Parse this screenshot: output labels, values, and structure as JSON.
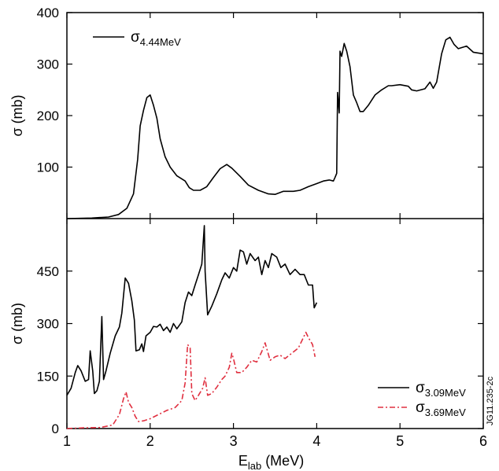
{
  "figure_id": "JG11.235-2c",
  "chart_data": {
    "type": "line",
    "xlabel": {
      "main": "E",
      "sub": "lab",
      "rest": " (MeV)"
    },
    "x_ticks": [
      "1",
      "2",
      "3",
      "4",
      "5",
      "6"
    ],
    "xlim": [
      1,
      6
    ],
    "panels": [
      {
        "name": "top",
        "ylabel": "σ (mb)",
        "ylim": [
          0,
          400
        ],
        "y_ticks": [
          100,
          200,
          300,
          400
        ],
        "legend_position": "top-left",
        "series": [
          {
            "name": "σ4.44MeV",
            "label_main": "σ",
            "label_sub": "4.44MeV",
            "color": "#000000",
            "style": "solid",
            "points": [
              [
                1.0,
                0
              ],
              [
                1.3,
                1
              ],
              [
                1.5,
                3
              ],
              [
                1.62,
                8
              ],
              [
                1.72,
                20
              ],
              [
                1.8,
                48
              ],
              [
                1.85,
                115
              ],
              [
                1.88,
                180
              ],
              [
                1.92,
                210
              ],
              [
                1.96,
                235
              ],
              [
                2.0,
                240
              ],
              [
                2.04,
                220
              ],
              [
                2.08,
                195
              ],
              [
                2.12,
                155
              ],
              [
                2.18,
                120
              ],
              [
                2.24,
                100
              ],
              [
                2.32,
                83
              ],
              [
                2.42,
                73
              ],
              [
                2.47,
                60
              ],
              [
                2.52,
                55
              ],
              [
                2.6,
                55
              ],
              [
                2.68,
                62
              ],
              [
                2.76,
                80
              ],
              [
                2.84,
                97
              ],
              [
                2.92,
                105
              ],
              [
                2.98,
                98
              ],
              [
                3.08,
                82
              ],
              [
                3.18,
                65
              ],
              [
                3.3,
                55
              ],
              [
                3.42,
                48
              ],
              [
                3.5,
                47
              ],
              [
                3.6,
                53
              ],
              [
                3.72,
                53
              ],
              [
                3.8,
                55
              ],
              [
                3.9,
                62
              ],
              [
                4.0,
                68
              ],
              [
                4.08,
                73
              ],
              [
                4.15,
                75
              ],
              [
                4.2,
                73
              ],
              [
                4.22,
                80
              ],
              [
                4.24,
                88
              ],
              [
                4.25,
                245
              ],
              [
                4.27,
                205
              ],
              [
                4.28,
                325
              ],
              [
                4.3,
                315
              ],
              [
                4.33,
                340
              ],
              [
                4.36,
                325
              ],
              [
                4.4,
                295
              ],
              [
                4.44,
                240
              ],
              [
                4.48,
                225
              ],
              [
                4.52,
                208
              ],
              [
                4.56,
                208
              ],
              [
                4.62,
                220
              ],
              [
                4.7,
                240
              ],
              [
                4.78,
                250
              ],
              [
                4.86,
                258
              ],
              [
                4.9,
                258
              ],
              [
                5.0,
                260
              ],
              [
                5.1,
                257
              ],
              [
                5.14,
                250
              ],
              [
                5.2,
                248
              ],
              [
                5.3,
                252
              ],
              [
                5.36,
                265
              ],
              [
                5.4,
                253
              ],
              [
                5.44,
                265
              ],
              [
                5.5,
                320
              ],
              [
                5.55,
                347
              ],
              [
                5.6,
                352
              ],
              [
                5.65,
                338
              ],
              [
                5.7,
                330
              ],
              [
                5.8,
                335
              ],
              [
                5.88,
                323
              ],
              [
                6.0,
                320
              ]
            ]
          }
        ]
      },
      {
        "name": "bottom",
        "ylabel": "σ (mb)",
        "ylim": [
          0,
          600
        ],
        "y_ticks": [
          0,
          150,
          300,
          450
        ],
        "legend_position": "bottom-right",
        "series": [
          {
            "name": "σ3.09MeV",
            "label_main": "σ",
            "label_sub": "3.09MeV",
            "color": "#000000",
            "style": "solid",
            "points": [
              [
                1.0,
                95
              ],
              [
                1.05,
                115
              ],
              [
                1.1,
                160
              ],
              [
                1.13,
                180
              ],
              [
                1.17,
                165
              ],
              [
                1.22,
                135
              ],
              [
                1.26,
                140
              ],
              [
                1.28,
                222
              ],
              [
                1.31,
                165
              ],
              [
                1.33,
                100
              ],
              [
                1.36,
                108
              ],
              [
                1.39,
                135
              ],
              [
                1.42,
                320
              ],
              [
                1.44,
                140
              ],
              [
                1.47,
                165
              ],
              [
                1.52,
                215
              ],
              [
                1.58,
                265
              ],
              [
                1.63,
                290
              ],
              [
                1.66,
                330
              ],
              [
                1.7,
                430
              ],
              [
                1.74,
                415
              ],
              [
                1.78,
                365
              ],
              [
                1.81,
                310
              ],
              [
                1.83,
                222
              ],
              [
                1.87,
                225
              ],
              [
                1.9,
                242
              ],
              [
                1.92,
                220
              ],
              [
                1.95,
                265
              ],
              [
                2.0,
                275
              ],
              [
                2.04,
                292
              ],
              [
                2.08,
                290
              ],
              [
                2.12,
                298
              ],
              [
                2.16,
                280
              ],
              [
                2.2,
                290
              ],
              [
                2.24,
                275
              ],
              [
                2.28,
                300
              ],
              [
                2.32,
                285
              ],
              [
                2.38,
                305
              ],
              [
                2.42,
                360
              ],
              [
                2.46,
                390
              ],
              [
                2.5,
                380
              ],
              [
                2.54,
                410
              ],
              [
                2.58,
                440
              ],
              [
                2.62,
                470
              ],
              [
                2.65,
                580
              ],
              [
                2.66,
                450
              ],
              [
                2.69,
                325
              ],
              [
                2.74,
                350
              ],
              [
                2.8,
                385
              ],
              [
                2.86,
                425
              ],
              [
                2.9,
                445
              ],
              [
                2.95,
                430
              ],
              [
                3.0,
                460
              ],
              [
                3.04,
                450
              ],
              [
                3.08,
                510
              ],
              [
                3.12,
                505
              ],
              [
                3.16,
                470
              ],
              [
                3.2,
                500
              ],
              [
                3.26,
                480
              ],
              [
                3.3,
                490
              ],
              [
                3.34,
                440
              ],
              [
                3.38,
                480
              ],
              [
                3.42,
                460
              ],
              [
                3.46,
                500
              ],
              [
                3.52,
                490
              ],
              [
                3.57,
                460
              ],
              [
                3.62,
                470
              ],
              [
                3.68,
                440
              ],
              [
                3.74,
                455
              ],
              [
                3.8,
                440
              ],
              [
                3.85,
                440
              ],
              [
                3.9,
                410
              ],
              [
                3.95,
                410
              ],
              [
                3.97,
                345
              ],
              [
                4.0,
                360
              ]
            ]
          },
          {
            "name": "σ3.69MeV",
            "label_main": "σ",
            "label_sub": "3.69MeV",
            "color": "#e03040",
            "style": "dashdot",
            "points": [
              [
                1.0,
                0
              ],
              [
                1.2,
                2
              ],
              [
                1.4,
                3
              ],
              [
                1.55,
                10
              ],
              [
                1.63,
                40
              ],
              [
                1.68,
                85
              ],
              [
                1.71,
                105
              ],
              [
                1.74,
                75
              ],
              [
                1.78,
                60
              ],
              [
                1.82,
                35
              ],
              [
                1.86,
                20
              ],
              [
                1.92,
                22
              ],
              [
                2.0,
                28
              ],
              [
                2.1,
                40
              ],
              [
                2.2,
                52
              ],
              [
                2.3,
                60
              ],
              [
                2.38,
                80
              ],
              [
                2.42,
                130
              ],
              [
                2.45,
                240
              ],
              [
                2.48,
                230
              ],
              [
                2.5,
                100
              ],
              [
                2.54,
                80
              ],
              [
                2.58,
                95
              ],
              [
                2.63,
                115
              ],
              [
                2.66,
                145
              ],
              [
                2.69,
                95
              ],
              [
                2.74,
                100
              ],
              [
                2.8,
                118
              ],
              [
                2.86,
                140
              ],
              [
                2.9,
                150
              ],
              [
                2.95,
                175
              ],
              [
                2.98,
                215
              ],
              [
                3.0,
                200
              ],
              [
                3.04,
                160
              ],
              [
                3.1,
                160
              ],
              [
                3.16,
                175
              ],
              [
                3.22,
                195
              ],
              [
                3.28,
                190
              ],
              [
                3.34,
                220
              ],
              [
                3.38,
                245
              ],
              [
                3.44,
                195
              ],
              [
                3.5,
                205
              ],
              [
                3.56,
                210
              ],
              [
                3.62,
                200
              ],
              [
                3.7,
                215
              ],
              [
                3.78,
                230
              ],
              [
                3.83,
                255
              ],
              [
                3.87,
                275
              ],
              [
                3.9,
                260
              ],
              [
                3.95,
                240
              ],
              [
                3.98,
                205
              ]
            ]
          }
        ]
      }
    ]
  }
}
